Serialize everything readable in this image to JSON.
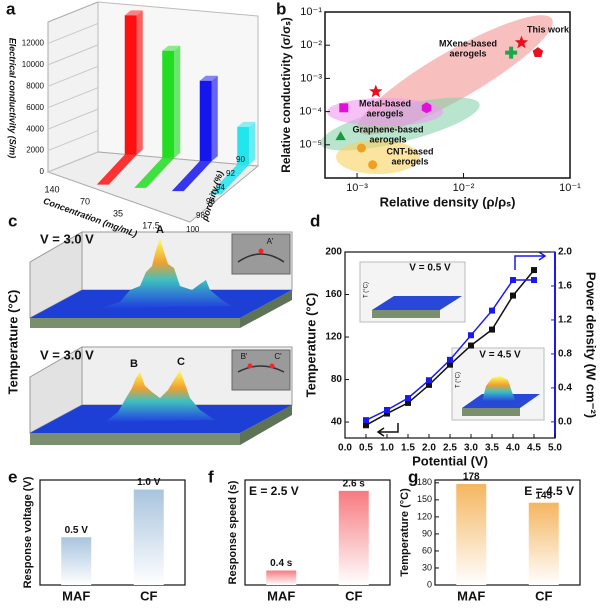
{
  "chart_data": [
    {
      "panel": "a",
      "type": "bar3d",
      "categories": [
        "140",
        "70",
        "35",
        "17.5"
      ],
      "values": [
        13000,
        10000,
        7500,
        3500
      ],
      "colors": [
        "#ff1010",
        "#22dd22",
        "#1515ee",
        "#22e5ee"
      ],
      "ylim": [
        0,
        14000
      ],
      "yticks": [
        0,
        2000,
        4000,
        6000,
        8000,
        10000,
        12000
      ],
      "zticks": [
        90,
        92,
        94,
        96,
        98,
        100
      ],
      "y_label": "Electrical conductivity (S/m)",
      "x_label": "Concentration (mg/mL)",
      "z_label": "porosity (%)"
    },
    {
      "panel": "b",
      "type": "scatter",
      "log": true,
      "xlim": [
        0.0005,
        0.1
      ],
      "ylim": [
        1e-06,
        0.1
      ],
      "xticks": [
        {
          "value": 0.001,
          "label": "10⁻³"
        },
        {
          "value": 0.01,
          "label": "10⁻²"
        },
        {
          "value": 0.1,
          "label": "10⁻¹"
        }
      ],
      "yticks": [
        {
          "value": 1e-05,
          "label": "10⁻⁵"
        },
        {
          "value": 0.0001,
          "label": "10⁻⁴"
        },
        {
          "value": 0.001,
          "label": "10⁻³"
        },
        {
          "value": 0.01,
          "label": "10⁻²"
        },
        {
          "value": 0.1,
          "label": "10⁻¹"
        }
      ],
      "x": [
        0.035,
        0.05,
        0.028,
        0.0015,
        0.00075,
        0.0045,
        0.0007,
        0.0011,
        0.0014
      ],
      "y": [
        0.012,
        0.006,
        0.006,
        0.0004,
        0.00013,
        0.00013,
        1.7e-05,
        8e-06,
        2.5e-06
      ],
      "colors": [
        "#e8101a",
        "#e8101a",
        "#1aa84a",
        "#e8101a",
        "#e010d8",
        "#e010d8",
        "#1a9a40",
        "#f0a020",
        "#f0a020"
      ],
      "markers": [
        "star",
        "pentagon",
        "cross",
        "star",
        "square",
        "hexagon",
        "triangle",
        "circle",
        "circle"
      ],
      "annotations": [
        [
          "This work"
        ],
        [
          "MXene-based",
          "aerogels"
        ],
        [
          "Metal-based",
          "aerogels"
        ],
        [
          "Graphene-based",
          "aerogels"
        ],
        [
          "CNT-based",
          "aerogels"
        ]
      ],
      "x_label": "Relative density (ρ/ρₛ)",
      "y_label": "Relative conductivity (σ/σₛ)"
    },
    {
      "panel": "c",
      "type": "thermal",
      "y_label": "Temperature (°C)",
      "plots": [
        {
          "label": "V = 3.0 V",
          "peaks": [
            "A"
          ],
          "inset": [
            "A'"
          ]
        },
        {
          "label": "V = 3.0 V",
          "peaks": [
            "B",
            "C"
          ],
          "inset": [
            "B'",
            "C'"
          ]
        }
      ]
    },
    {
      "panel": "d",
      "type": "line",
      "x": [
        0.5,
        1.0,
        1.5,
        2.0,
        2.5,
        3.0,
        3.5,
        4.0,
        4.5
      ],
      "xlim": [
        0,
        5
      ],
      "xticks": [
        {
          "value": 0,
          "label": "0.0"
        },
        0.5,
        {
          "value": 1,
          "label": "1.0"
        },
        1.5,
        {
          "value": 2,
          "label": "2.0"
        },
        2.5,
        {
          "value": 3,
          "label": "3.0"
        },
        3.5,
        {
          "value": 4,
          "label": "4.0"
        },
        4.5,
        {
          "value": 5,
          "label": "5.0"
        }
      ],
      "ylim": [
        25,
        200
      ],
      "yticks": [
        40,
        80,
        120,
        160,
        200
      ],
      "y2lim": [
        -0.19,
        2.0
      ],
      "y2ticks": [
        {
          "value": 0,
          "label": "0.0"
        },
        0.4,
        0.8,
        1.2,
        1.6,
        {
          "value": 2,
          "label": "2.0"
        }
      ],
      "series": [
        {
          "color": "#111111",
          "values": [
            37,
            48,
            58,
            75,
            94,
            112,
            127,
            159,
            183
          ]
        },
        {
          "color": "#1a1aee",
          "axis": "y2",
          "values": [
            0.02,
            0.14,
            0.28,
            0.49,
            0.73,
            1.02,
            1.31,
            1.67,
            1.67
          ]
        }
      ],
      "x_label": "Potential (V)",
      "y_label": "Temperature (°C)",
      "y2_label": "Power density (W cm⁻²)",
      "insets": [
        {
          "label": "V = 0.5 V",
          "axis": "T (°C)"
        },
        {
          "label": "V = 4.5 V",
          "axis": "T (°C)"
        }
      ]
    },
    {
      "panel": "e",
      "type": "bar",
      "categories": [
        "MAF",
        "CF"
      ],
      "values": [
        0.5,
        1.0
      ],
      "value_labels": [
        "0.5 V",
        "1.0 V"
      ],
      "ylim": [
        0,
        1.1
      ],
      "color": "#a9c4de",
      "y_label": "Response voltage (V)"
    },
    {
      "panel": "f",
      "type": "bar",
      "categories": [
        "MAF",
        "CF"
      ],
      "values": [
        0.4,
        2.6
      ],
      "value_labels": [
        "0.4 s",
        "2.6 s"
      ],
      "ylim": [
        0,
        2.9
      ],
      "color": "#f77a80",
      "y_label": "Response speed (s)",
      "annotation": "E = 2.5 V"
    },
    {
      "panel": "g",
      "type": "bar",
      "categories": [
        "MAF",
        "CF"
      ],
      "values": [
        178,
        145
      ],
      "ylim": [
        0,
        185
      ],
      "yticks": [
        0,
        30,
        60,
        90,
        120,
        150,
        180
      ],
      "color": "#f4b660",
      "y_label": "Temperature (°C)",
      "annotation": "E = 4.5 V"
    }
  ]
}
